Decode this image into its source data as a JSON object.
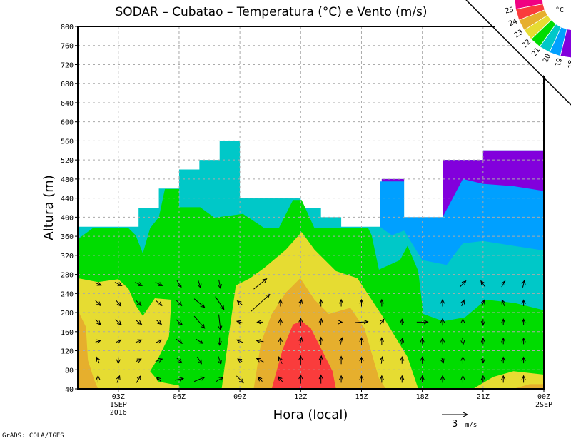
{
  "chart_data": {
    "type": "contour-filled with wind vectors",
    "title": "SODAR – Cubatao – Temperatura (°C) e Vento (m/s)",
    "xlabel": "Hora (local)",
    "ylabel": "Altura (m)",
    "xlim": [
      1,
      24
    ],
    "ylim": [
      40,
      800
    ],
    "grid": true,
    "yticks": [
      40,
      80,
      120,
      160,
      200,
      240,
      280,
      320,
      360,
      400,
      440,
      480,
      520,
      560,
      600,
      640,
      680,
      720,
      760,
      800
    ],
    "xticks": [
      {
        "hour": 3,
        "label": "03Z",
        "sub": [
          "1SEP",
          "2016"
        ]
      },
      {
        "hour": 6,
        "label": "06Z",
        "sub": []
      },
      {
        "hour": 9,
        "label": "09Z",
        "sub": []
      },
      {
        "hour": 12,
        "label": "12Z",
        "sub": []
      },
      {
        "hour": 15,
        "label": "15Z",
        "sub": []
      },
      {
        "hour": 18,
        "label": "18Z",
        "sub": []
      },
      {
        "hour": 21,
        "label": "21Z",
        "sub": []
      },
      {
        "hour": 24,
        "label": "00Z",
        "sub": [
          "2SEP"
        ]
      }
    ],
    "colorbar": {
      "unit": "°C",
      "colors": [
        "#f00082",
        "#fa3c3c",
        "#e6af2d",
        "#e6dc32",
        "#00dc00",
        "#00c8c8",
        "#00a0ff",
        "#8200dc",
        "#a000c8"
      ],
      "labels": [
        "25",
        "24",
        "23",
        "22",
        "21",
        "20",
        "19",
        "18"
      ]
    },
    "regions": [
      {
        "level": "20-21",
        "color": "#00c8c8",
        "points": [
          [
            1,
            40
          ],
          [
            1,
            380
          ],
          [
            4,
            380
          ],
          [
            4,
            420
          ],
          [
            5,
            420
          ],
          [
            5,
            460
          ],
          [
            6,
            460
          ],
          [
            6,
            500
          ],
          [
            7,
            500
          ],
          [
            7,
            520
          ],
          [
            8,
            520
          ],
          [
            8,
            560
          ],
          [
            9,
            560
          ],
          [
            9,
            440
          ],
          [
            12,
            440
          ],
          [
            12,
            420
          ],
          [
            13,
            420
          ],
          [
            13,
            400
          ],
          [
            14,
            400
          ],
          [
            14,
            380
          ],
          [
            16,
            380
          ],
          [
            16,
            480
          ],
          [
            17.1,
            480
          ],
          [
            17.1,
            400
          ],
          [
            19,
            400
          ],
          [
            19,
            520
          ],
          [
            21,
            520
          ],
          [
            21,
            540
          ],
          [
            24,
            540
          ],
          [
            24,
            40
          ]
        ]
      },
      {
        "level": "19-20",
        "color": "#00a0ff",
        "points": [
          [
            15.9,
            380
          ],
          [
            15.9,
            475
          ],
          [
            17.1,
            475
          ],
          [
            17.1,
            400
          ],
          [
            19,
            400
          ],
          [
            19,
            520
          ],
          [
            24,
            520
          ],
          [
            24,
            330
          ],
          [
            22.5,
            340
          ],
          [
            21,
            350
          ],
          [
            20,
            345
          ],
          [
            19.2,
            300
          ],
          [
            18,
            310
          ],
          [
            17.1,
            372
          ],
          [
            16.5,
            362
          ]
        ]
      },
      {
        "level": "18-19",
        "color": "#8200dc",
        "points": [
          [
            19,
            400
          ],
          [
            19,
            520
          ],
          [
            21,
            520
          ],
          [
            21,
            540
          ],
          [
            24,
            540
          ],
          [
            24,
            455
          ],
          [
            22.5,
            465
          ],
          [
            21,
            470
          ],
          [
            20,
            480
          ]
        ]
      },
      {
        "level": "18-19",
        "color": "#8200dc",
        "points": [
          [
            16,
            475
          ],
          [
            16,
            480
          ],
          [
            17.1,
            480
          ],
          [
            17.1,
            475
          ]
        ]
      },
      {
        "level": "21-22",
        "color": "#00dc00",
        "points": [
          [
            1,
            354
          ],
          [
            1.74,
            377
          ],
          [
            3.5,
            377
          ],
          [
            3.86,
            362
          ],
          [
            4.21,
            324
          ],
          [
            4.57,
            377
          ],
          [
            5,
            400
          ],
          [
            5.3,
            459
          ],
          [
            6,
            459
          ],
          [
            6,
            421
          ],
          [
            7.04,
            421
          ],
          [
            7.74,
            399
          ],
          [
            9.15,
            407
          ],
          [
            10.21,
            377
          ],
          [
            10.92,
            377
          ],
          [
            11.62,
            436
          ],
          [
            12.05,
            436
          ],
          [
            12.68,
            377
          ],
          [
            15.33,
            377
          ],
          [
            15.5,
            362
          ],
          [
            15.86,
            290
          ],
          [
            16.9,
            310
          ],
          [
            17.27,
            340
          ],
          [
            17.8,
            287
          ],
          [
            18.05,
            197
          ],
          [
            19.04,
            182
          ],
          [
            20.1,
            190
          ],
          [
            21.15,
            227
          ],
          [
            22.57,
            220
          ],
          [
            24,
            205
          ],
          [
            24,
            40
          ],
          [
            1,
            40
          ]
        ]
      },
      {
        "level": "22-23",
        "color": "#e6dc32",
        "points": [
          [
            1,
            272
          ],
          [
            2,
            264
          ],
          [
            3,
            270
          ],
          [
            3.5,
            250
          ],
          [
            3.86,
            215
          ],
          [
            4.21,
            193
          ],
          [
            4.8,
            230
          ],
          [
            5.62,
            227
          ],
          [
            5.5,
            150
          ],
          [
            5,
            107
          ],
          [
            4.57,
            77
          ],
          [
            5,
            55
          ],
          [
            6,
            47
          ],
          [
            6,
            40
          ],
          [
            1,
            40
          ]
        ]
      },
      {
        "level": "22-23",
        "color": "#e6dc32",
        "points": [
          [
            8.1,
            40
          ],
          [
            8.45,
            152
          ],
          [
            8.8,
            257
          ],
          [
            9.5,
            272
          ],
          [
            10.21,
            294
          ],
          [
            11.27,
            332
          ],
          [
            12.05,
            369
          ],
          [
            12.68,
            332
          ],
          [
            13.74,
            287
          ],
          [
            14.8,
            272
          ],
          [
            15.5,
            227
          ],
          [
            16.2,
            182
          ],
          [
            17.27,
            107
          ],
          [
            17.8,
            40
          ]
        ]
      },
      {
        "level": "22-23",
        "color": "#e6dc32",
        "points": [
          [
            20.5,
            40
          ],
          [
            21.5,
            65
          ],
          [
            22.5,
            77
          ],
          [
            24,
            70
          ],
          [
            24,
            40
          ]
        ]
      },
      {
        "level": "23-24",
        "color": "#e6af2d",
        "points": [
          [
            1,
            205
          ],
          [
            1.4,
            170
          ],
          [
            1.5,
            100
          ],
          [
            1.8,
            60
          ],
          [
            2,
            40
          ],
          [
            1,
            40
          ]
        ]
      },
      {
        "level": "23-24",
        "color": "#e6af2d",
        "points": [
          [
            9.68,
            40
          ],
          [
            10.04,
            137
          ],
          [
            10.57,
            197
          ],
          [
            11.27,
            242
          ],
          [
            11.98,
            272
          ],
          [
            12.68,
            227
          ],
          [
            13.39,
            197
          ],
          [
            14.45,
            210
          ],
          [
            15.15,
            167
          ],
          [
            15.86,
            62
          ],
          [
            16.2,
            40
          ]
        ]
      },
      {
        "level": "23-24",
        "color": "#e6af2d",
        "points": [
          [
            22.5,
            40
          ],
          [
            23.3,
            50
          ],
          [
            24,
            50
          ],
          [
            24,
            40
          ]
        ]
      },
      {
        "level": "24-25",
        "color": "#fa3c3c",
        "points": [
          [
            10.57,
            40
          ],
          [
            11.1,
            122
          ],
          [
            11.62,
            175
          ],
          [
            12.05,
            182
          ],
          [
            12.5,
            167
          ],
          [
            13.04,
            122
          ],
          [
            13.57,
            77
          ],
          [
            13.74,
            40
          ]
        ]
      },
      {
        "level": ">25",
        "color": "#f00082",
        "points": [
          [
            11.9,
            40
          ],
          [
            12,
            46
          ],
          [
            12.1,
            40
          ]
        ]
      }
    ],
    "wind": {
      "hours": [
        2,
        3,
        4,
        5,
        6,
        7,
        8,
        9,
        10,
        11,
        12,
        13,
        14,
        15,
        16,
        17,
        18,
        19,
        20,
        21,
        22,
        23
      ],
      "levels": [
        {
          "m": 60,
          "u": [
            0,
            0.3,
            0.5,
            -0.5,
            1,
            1.2,
            0.8,
            0.8,
            -0.5,
            -0.5,
            0,
            0,
            0,
            0,
            0,
            0,
            0,
            0,
            0,
            0,
            0,
            0
          ],
          "v": [
            0.8,
            0.8,
            0.8,
            0.5,
            0.2,
            0.5,
            0.5,
            -0.8,
            0.5,
            0.6,
            1,
            1,
            0.8,
            0.8,
            0.8,
            0.8,
            0.8,
            0.8,
            0.8,
            0.8,
            0.8,
            0.8
          ]
        },
        {
          "m": 100,
          "u": [
            -0.3,
            0,
            0.6,
            0.8,
            0.6,
            0.5,
            0.3,
            -0.5,
            -0.8,
            -0.4,
            0,
            0.1,
            0,
            0,
            0.1,
            0,
            0,
            0.2,
            0,
            0,
            0,
            0
          ],
          "v": [
            0.7,
            -0.7,
            0.3,
            0.3,
            -0.6,
            -0.8,
            -0.9,
            0.3,
            0.4,
            0.8,
            1,
            1,
            0.9,
            0.7,
            0.8,
            0.8,
            0.8,
            -0.6,
            0.8,
            -0.6,
            0.7,
            0.7
          ]
        },
        {
          "m": 140,
          "u": [
            0.6,
            0.6,
            0.7,
            0.6,
            0.7,
            0.8,
            0,
            -0.7,
            -0.8,
            0,
            0.2,
            0,
            0.2,
            0,
            0,
            0.1,
            0,
            0,
            0.1,
            0,
            0,
            0
          ],
          "v": [
            0.2,
            0.3,
            0.3,
            0.3,
            -0.5,
            -0.5,
            -0.9,
            0.3,
            0.1,
            0.8,
            0.9,
            0.9,
            0.8,
            0.8,
            0.8,
            0.7,
            0.7,
            0.7,
            -0.7,
            0.7,
            0.7,
            0.7
          ]
        },
        {
          "m": 180,
          "u": [
            0.6,
            0.7,
            0.7,
            0.6,
            0.7,
            1.2,
            0.2,
            -0.7,
            -0.7,
            0,
            0,
            0.1,
            0.2,
            1.5,
            0.5,
            0,
            1.3,
            0,
            0,
            0,
            0,
            0
          ],
          "v": [
            -0.6,
            -0.6,
            -0.5,
            -0.5,
            -0.6,
            -1.4,
            -1.8,
            0.2,
            0,
            0.8,
            0.9,
            0.8,
            0,
            0.1,
            0.7,
            0.7,
            0,
            0.8,
            0.7,
            -0.7,
            0.7,
            0.7
          ]
        },
        {
          "m": 220,
          "u": [
            0.6,
            0.6,
            0.6,
            0.7,
            0.6,
            1.2,
            1,
            -0.6,
            2.2,
            0,
            0.2,
            0,
            0,
            0,
            0,
            0,
            0,
            0,
            0.3,
            0.3,
            -0.3,
            0
          ],
          "v": [
            -0.6,
            -0.7,
            -0.6,
            -0.6,
            -0.6,
            -1,
            -1.5,
            0.5,
            2,
            0.8,
            0.8,
            0.8,
            0.8,
            0.8,
            0.8,
            0,
            0,
            0.8,
            0.7,
            0.7,
            0.7,
            0.7
          ]
        },
        {
          "m": 260,
          "u": [
            0.7,
            0.8,
            0.8,
            0.8,
            0.5,
            0.3,
            0.2,
            0,
            1.5,
            0,
            0,
            0,
            0,
            0,
            0,
            0,
            0,
            0,
            0.7,
            -0.5,
            0.4,
            0.2
          ],
          "v": [
            -0.3,
            -0.4,
            -0.4,
            -0.4,
            -0.8,
            -0.9,
            -1,
            0,
            1.2,
            0,
            0,
            0,
            0,
            0,
            0,
            0,
            0,
            0,
            0.7,
            0.7,
            0.7,
            0.8
          ]
        }
      ],
      "reference": {
        "value": 3,
        "value_label": "3",
        "unit": "m/s"
      }
    },
    "credit": "GrADS: COLA/IGES"
  }
}
